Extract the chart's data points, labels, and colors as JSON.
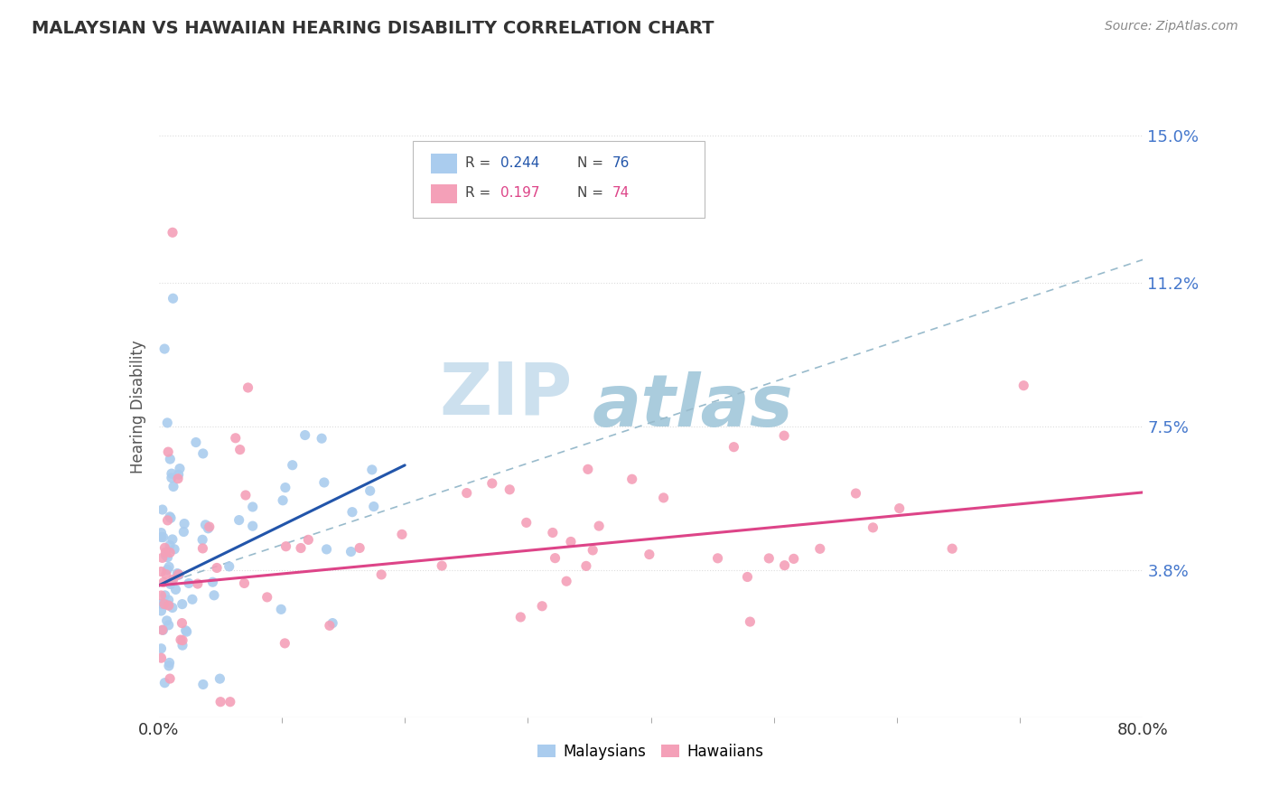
{
  "title": "MALAYSIAN VS HAWAIIAN HEARING DISABILITY CORRELATION CHART",
  "source": "Source: ZipAtlas.com",
  "ylabel": "Hearing Disability",
  "yticks": [
    0.038,
    0.075,
    0.112,
    0.15
  ],
  "ytick_labels": [
    "3.8%",
    "7.5%",
    "11.2%",
    "15.0%"
  ],
  "xtick_labels": [
    "0.0%",
    "80.0%"
  ],
  "xlim": [
    0.0,
    0.8
  ],
  "ylim": [
    0.0,
    0.16
  ],
  "r_malaysian": 0.244,
  "n_malaysian": 76,
  "r_hawaiian": 0.197,
  "n_hawaiian": 74,
  "color_malaysian": "#aaccee",
  "color_hawaiian": "#f4a0b8",
  "line_color_malaysian": "#2255aa",
  "line_color_hawaiian": "#dd4488",
  "line_color_dashed": "#99bbcc",
  "watermark_zip": "ZIP",
  "watermark_atlas": "atlas",
  "watermark_color_zip": "#cce0ee",
  "watermark_color_atlas": "#aaccdd",
  "background_color": "#ffffff",
  "malaysian_line_x": [
    0.0,
    0.2
  ],
  "malaysian_line_y": [
    0.034,
    0.065
  ],
  "hawaiian_line_x": [
    0.0,
    0.8
  ],
  "hawaiian_line_y": [
    0.034,
    0.058
  ],
  "dashed_line_x": [
    0.0,
    0.8
  ],
  "dashed_line_y": [
    0.034,
    0.118
  ],
  "grid_color": "#dddddd",
  "grid_linestyle": "dotted"
}
